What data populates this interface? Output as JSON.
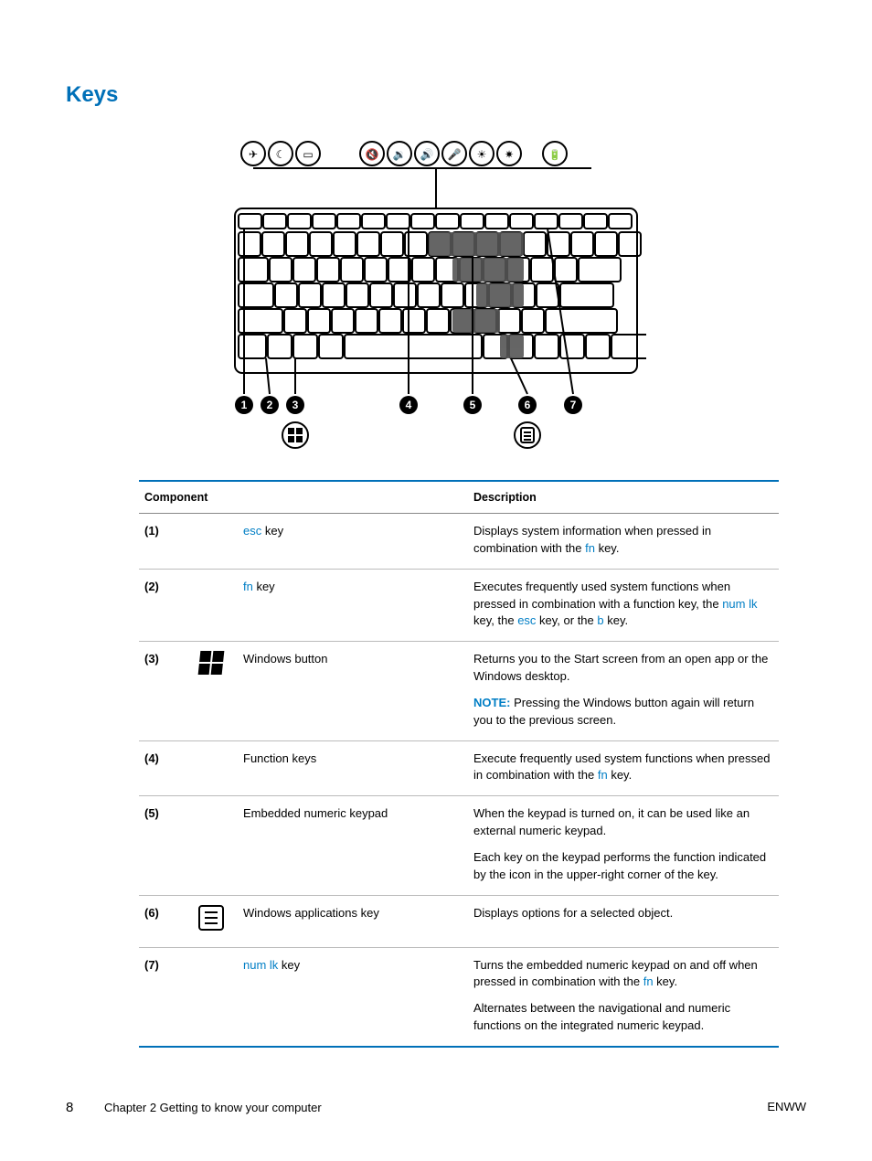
{
  "heading": "Keys",
  "figure": {
    "top_icons_count": 9,
    "callouts": [
      "1",
      "2",
      "3",
      "4",
      "5",
      "6",
      "7"
    ],
    "badge_bg": "#000000",
    "badge_fg": "#ffffff",
    "key_stroke": "#000000",
    "line_stroke": "#000000"
  },
  "table": {
    "head": {
      "component": "Component",
      "description": "Description"
    },
    "rows": [
      {
        "num": "(1)",
        "icon": null,
        "component_parts": [
          {
            "t": "esc",
            "link": true
          },
          {
            "t": " key",
            "link": false
          }
        ],
        "desc_blocks": [
          [
            {
              "t": "Displays system information when pressed in combination with the ",
              "link": false
            },
            {
              "t": "fn",
              "link": true
            },
            {
              "t": " key.",
              "link": false
            }
          ]
        ]
      },
      {
        "num": "(2)",
        "icon": null,
        "component_parts": [
          {
            "t": "fn",
            "link": true
          },
          {
            "t": " key",
            "link": false
          }
        ],
        "desc_blocks": [
          [
            {
              "t": "Executes frequently used system functions when pressed in combination with a function key, the ",
              "link": false
            },
            {
              "t": "num lk",
              "link": true
            },
            {
              "t": " key, the ",
              "link": false
            },
            {
              "t": "esc",
              "link": true
            },
            {
              "t": " key, or the ",
              "link": false
            },
            {
              "t": "b",
              "link": true
            },
            {
              "t": " key.",
              "link": false
            }
          ]
        ]
      },
      {
        "num": "(3)",
        "icon": "windows",
        "component_parts": [
          {
            "t": "Windows button",
            "link": false
          }
        ],
        "desc_blocks": [
          [
            {
              "t": "Returns you to the Start screen from an open app or the Windows desktop.",
              "link": false
            }
          ],
          [
            {
              "t": "NOTE:",
              "note": true
            },
            {
              "t": "   Pressing the Windows button again will return you to the previous screen.",
              "link": false
            }
          ]
        ]
      },
      {
        "num": "(4)",
        "icon": null,
        "component_parts": [
          {
            "t": "Function keys",
            "link": false
          }
        ],
        "desc_blocks": [
          [
            {
              "t": "Execute frequently used system functions when pressed in combination with the ",
              "link": false
            },
            {
              "t": "fn",
              "link": true
            },
            {
              "t": " key.",
              "link": false
            }
          ]
        ]
      },
      {
        "num": "(5)",
        "icon": null,
        "component_parts": [
          {
            "t": "Embedded numeric keypad",
            "link": false
          }
        ],
        "desc_blocks": [
          [
            {
              "t": "When the keypad is turned on, it can be used like an external numeric keypad.",
              "link": false
            }
          ],
          [
            {
              "t": "Each key on the keypad performs the function indicated by the icon in the upper-right corner of the key.",
              "link": false
            }
          ]
        ]
      },
      {
        "num": "(6)",
        "icon": "menu",
        "component_parts": [
          {
            "t": "Windows applications key",
            "link": false
          }
        ],
        "desc_blocks": [
          [
            {
              "t": "Displays options for a selected object.",
              "link": false
            }
          ]
        ]
      },
      {
        "num": "(7)",
        "icon": null,
        "component_parts": [
          {
            "t": "num lk",
            "link": true
          },
          {
            "t": " key",
            "link": false
          }
        ],
        "desc_blocks": [
          [
            {
              "t": "Turns the embedded numeric keypad on and off when pressed in combination with the ",
              "link": false
            },
            {
              "t": "fn",
              "link": true
            },
            {
              "t": " key.",
              "link": false
            }
          ],
          [
            {
              "t": "Alternates between the navigational and numeric functions on the integrated numeric keypad.",
              "link": false
            }
          ]
        ]
      }
    ]
  },
  "footer": {
    "page_number": "8",
    "chapter": "Chapter 2   Getting to know your computer",
    "right": "ENWW"
  }
}
